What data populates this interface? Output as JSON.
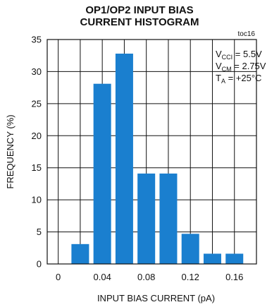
{
  "chart_data": {
    "type": "bar",
    "title_lines": [
      "OP1/OP2 INPUT BIAS",
      "CURRENT HISTOGRAM"
    ],
    "corner_label": "toc16",
    "xlabel": "INPUT BIAS CURRENT (pA)",
    "ylabel": "FREQUENCY (%)",
    "xlim": [
      -0.01,
      0.18
    ],
    "ylim": [
      0,
      35
    ],
    "x_ticks": [
      "0",
      "0.04",
      "0.08",
      "0.12",
      "0.16"
    ],
    "x_tick_values": [
      0,
      0.04,
      0.08,
      0.12,
      0.16
    ],
    "y_ticks": [
      "0",
      "5",
      "10",
      "15",
      "20",
      "25",
      "30",
      "35"
    ],
    "y_tick_values": [
      0,
      5,
      10,
      15,
      20,
      25,
      30,
      35
    ],
    "grid": true,
    "bar_width": 0.016,
    "bars": [
      {
        "x": 0.02,
        "value": 3.1
      },
      {
        "x": 0.04,
        "value": 28.1
      },
      {
        "x": 0.06,
        "value": 32.8
      },
      {
        "x": 0.08,
        "value": 14.1
      },
      {
        "x": 0.1,
        "value": 14.1
      },
      {
        "x": 0.12,
        "value": 4.7
      },
      {
        "x": 0.14,
        "value": 1.6
      },
      {
        "x": 0.16,
        "value": 1.6
      }
    ],
    "bar_color": "#1a7fcf",
    "conditions": [
      {
        "main": "V",
        "sub": "CCI",
        "rest": " = 5.5V"
      },
      {
        "main": "V",
        "sub": "CM",
        "rest": " = 2.75V"
      },
      {
        "main": "T",
        "sub": "A",
        "rest": " = +25°C"
      }
    ]
  }
}
